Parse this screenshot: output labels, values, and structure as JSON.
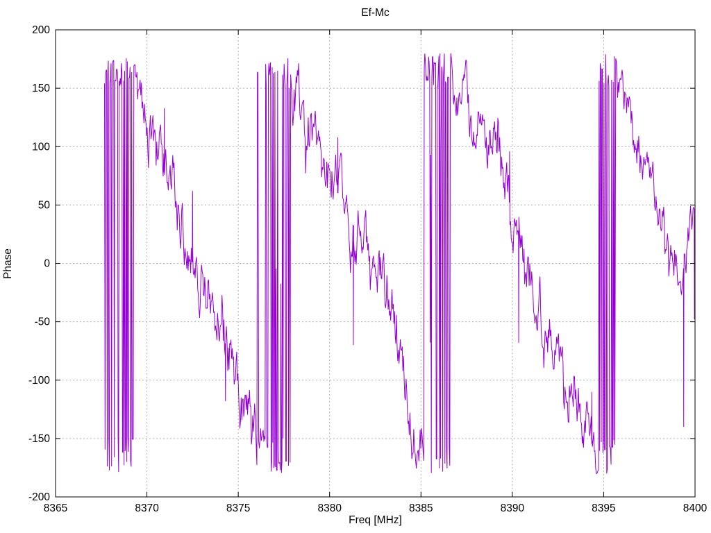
{
  "window": {
    "background": "#ffffff"
  },
  "chart_data": {
    "type": "line",
    "title": "Ef-Mc",
    "xlabel": "Freq [MHz]",
    "ylabel": "Phase",
    "xlim": [
      8365,
      8400
    ],
    "ylim": [
      -200,
      200
    ],
    "xticks": [
      8365,
      8370,
      8375,
      8380,
      8385,
      8390,
      8395,
      8400
    ],
    "yticks": [
      -200,
      -150,
      -100,
      -50,
      0,
      50,
      100,
      150,
      200
    ],
    "grid": true,
    "grid_color": "#b0b0b0",
    "axis_color": "#000000",
    "text_color": "#000000",
    "legend": "none",
    "description": "Noisy interferometer phase vs frequency, wrapping at +/-180 deg; sawtooth ramps with dense wrap bursts near 8368.5, 8377, 8386, 8395 MHz",
    "series": [
      {
        "name": "Ef-Mc",
        "color": "#9400D3",
        "line_width": 1,
        "sample_step_mhz": 0.035,
        "noise_seed": 1337,
        "clip": [
          -180,
          180
        ],
        "segments": [
          {
            "type": "burst",
            "x0": 8367.68,
            "x1": 8369.38,
            "hi": [
              148,
              180
            ],
            "lo": [
              -180,
              -148
            ]
          },
          {
            "type": "ramp",
            "noise": 26,
            "anchors": [
              [
                8369.42,
                152
              ],
              [
                8370,
                115
              ],
              [
                8371,
                76
              ],
              [
                8372,
                30
              ],
              [
                8373,
                -12
              ],
              [
                8374,
                -55
              ],
              [
                8375,
                -100
              ],
              [
                8375.5,
                -135
              ],
              [
                8375.95,
                -150
              ]
            ],
            "spikes": [
              [
                8370.95,
                133
              ],
              [
                8372.5,
                62
              ],
              [
                8374.3,
                -118
              ]
            ]
          },
          {
            "type": "burst",
            "x0": 8376.02,
            "x1": 8376.1,
            "hi": [
              150,
              172
            ],
            "lo": [
              -175,
              -150
            ]
          },
          {
            "type": "plateau",
            "x0": 8376.12,
            "x1": 8376.48,
            "y": -148,
            "noise": 12
          },
          {
            "type": "burst",
            "x0": 8376.5,
            "x1": 8377.88,
            "hi": [
              148,
              180
            ],
            "lo": [
              -180,
              -148
            ]
          },
          {
            "type": "ramp",
            "noise": 24,
            "anchors": [
              [
                8377.92,
                148
              ],
              [
                8378.4,
                132
              ],
              [
                8379,
                105
              ],
              [
                8380,
                75
              ],
              [
                8381,
                42
              ],
              [
                8382,
                10
              ],
              [
                8383,
                -20
              ],
              [
                8383.6,
                -60
              ],
              [
                8384,
                -95
              ],
              [
                8384.5,
                -122
              ],
              [
                8385.08,
                -150
              ]
            ],
            "spikes": [
              [
                8380.45,
                108
              ],
              [
                8381.3,
                -70
              ]
            ]
          },
          {
            "type": "burst",
            "x0": 8385.15,
            "x1": 8386.68,
            "hi": [
              148,
              180
            ],
            "lo": [
              -180,
              -148
            ]
          },
          {
            "type": "ramp",
            "noise": 24,
            "anchors": [
              [
                8386.72,
                168
              ],
              [
                8387,
                152
              ],
              [
                8388,
                120
              ],
              [
                8389,
                92
              ],
              [
                8389.7,
                68
              ],
              [
                8390.2,
                32
              ],
              [
                8390.7,
                2
              ],
              [
                8391,
                -15
              ],
              [
                8392,
                -55
              ],
              [
                8393,
                -88
              ],
              [
                8393.6,
                -110
              ],
              [
                8394,
                -140
              ],
              [
                8394.65,
                -158
              ]
            ],
            "spikes": [
              [
                8389.85,
                96
              ],
              [
                8390.35,
                -68
              ],
              [
                8394.35,
                -110
              ]
            ]
          },
          {
            "type": "burst",
            "x0": 8394.72,
            "x1": 8395.62,
            "hi": [
              150,
              180
            ],
            "lo": [
              -180,
              -150
            ]
          },
          {
            "type": "ramp",
            "noise": 20,
            "anchors": [
              [
                8395.66,
                160
              ],
              [
                8396,
                143
              ],
              [
                8396.5,
                115
              ],
              [
                8397,
                92
              ],
              [
                8397.5,
                76
              ],
              [
                8398,
                50
              ],
              [
                8398.5,
                28
              ],
              [
                8399,
                5
              ],
              [
                8399.35,
                -18
              ],
              [
                8399.6,
                25
              ],
              [
                8400,
                42
              ]
            ],
            "spikes": [
              [
                8399.38,
                -140
              ],
              [
                8399.97,
                -48
              ]
            ]
          }
        ]
      }
    ]
  }
}
